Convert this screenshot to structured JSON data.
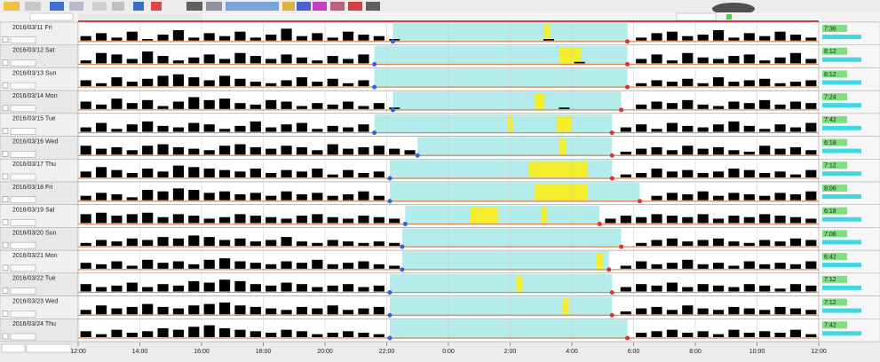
{
  "chart_data": {
    "type": "actogram",
    "xlim": [
      0,
      24
    ],
    "xticks": [
      {
        "value": 0,
        "label": "12:00"
      },
      {
        "value": 2,
        "label": "14:00"
      },
      {
        "value": 4,
        "label": "16:00"
      },
      {
        "value": 6,
        "label": "18:00"
      },
      {
        "value": 8,
        "label": "20:00"
      },
      {
        "value": 10,
        "label": "22:00"
      },
      {
        "value": 12,
        "label": "0:00"
      },
      {
        "value": 14,
        "label": "2:00"
      },
      {
        "value": 16,
        "label": "4:00"
      },
      {
        "value": 18,
        "label": "6:00"
      },
      {
        "value": 20,
        "label": "8:00"
      },
      {
        "value": 22,
        "label": "10:00"
      },
      {
        "value": 24,
        "label": "12:00"
      }
    ],
    "activity_max": 10,
    "colors": {
      "activity": "#000000",
      "sleep": "#b4ecec",
      "wake": "#f4ee2c",
      "onset": "#2a64e0",
      "offset": "#e03030"
    },
    "rows": [
      {
        "date": "2016/03/11 Fri",
        "sleep": [
          10.2,
          17.8
        ],
        "wake": [
          [
            15.1,
            15.3
          ]
        ],
        "summary": "7:36",
        "activity": [
          3,
          5,
          2,
          6,
          1,
          4,
          7,
          2,
          5,
          3,
          6,
          2,
          4,
          8,
          3,
          5,
          2,
          6,
          4,
          3,
          1,
          0,
          0,
          0,
          0,
          0,
          0,
          0,
          0,
          0,
          1,
          0,
          0,
          0,
          0,
          0,
          2,
          5,
          6,
          3,
          4,
          7,
          2,
          5,
          3,
          6,
          4,
          2
        ]
      },
      {
        "date": "2016/03/12 Sat",
        "sleep": [
          9.6,
          17.8
        ],
        "wake": [
          [
            15.6,
            16.3
          ]
        ],
        "summary": "8:12",
        "activity": [
          2,
          7,
          6,
          3,
          8,
          5,
          2,
          4,
          6,
          3,
          7,
          5,
          3,
          6,
          4,
          2,
          5,
          3,
          6,
          0,
          0,
          0,
          0,
          0,
          0,
          0,
          0,
          0,
          0,
          0,
          0,
          0,
          1,
          0,
          0,
          0,
          3,
          6,
          2,
          7,
          4,
          3,
          5,
          6,
          2,
          4,
          7,
          3
        ]
      },
      {
        "date": "2016/03/13 Sun",
        "sleep": [
          9.6,
          17.8
        ],
        "wake": [],
        "summary": "8:12",
        "activity": [
          4,
          2,
          6,
          3,
          5,
          7,
          8,
          6,
          4,
          7,
          5,
          3,
          2,
          4,
          6,
          3,
          5,
          2,
          4,
          0,
          0,
          0,
          0,
          0,
          0,
          0,
          0,
          0,
          0,
          0,
          0,
          0,
          0,
          0,
          0,
          0,
          2,
          4,
          3,
          5,
          2,
          6,
          3,
          4,
          5,
          2,
          3,
          4
        ]
      },
      {
        "date": "2016/03/14 Mon",
        "sleep": [
          10.2,
          17.6
        ],
        "wake": [
          [
            14.8,
            15.1
          ]
        ],
        "summary": "7:24",
        "activity": [
          5,
          3,
          7,
          4,
          6,
          2,
          5,
          8,
          6,
          7,
          4,
          3,
          6,
          5,
          2,
          4,
          3,
          5,
          2,
          4,
          1,
          0,
          0,
          0,
          0,
          0,
          0,
          0,
          0,
          0,
          0,
          1,
          0,
          0,
          0,
          0,
          3,
          5,
          4,
          6,
          3,
          2,
          5,
          4,
          6,
          3,
          5,
          4
        ]
      },
      {
        "date": "2016/03/15 Tue",
        "sleep": [
          9.6,
          17.3
        ],
        "wake": [
          [
            13.9,
            14.1
          ],
          [
            15.5,
            16.0
          ]
        ],
        "summary": "7:42",
        "activity": [
          3,
          6,
          2,
          5,
          7,
          4,
          3,
          6,
          5,
          2,
          4,
          7,
          3,
          5,
          6,
          2,
          4,
          3,
          5,
          0,
          0,
          0,
          0,
          0,
          0,
          0,
          0,
          0,
          0,
          0,
          0,
          0,
          0,
          0,
          0,
          3,
          5,
          2,
          6,
          4,
          3,
          5,
          7,
          4,
          2,
          5,
          3,
          6
        ]
      },
      {
        "date": "2016/03/16 Wed",
        "sleep": [
          11.0,
          17.3
        ],
        "wake": [
          [
            15.6,
            15.8
          ]
        ],
        "summary": "6:18",
        "activity": [
          6,
          4,
          5,
          3,
          6,
          7,
          5,
          4,
          3,
          6,
          7,
          5,
          4,
          6,
          5,
          3,
          7,
          4,
          5,
          6,
          4,
          3,
          0,
          0,
          0,
          0,
          0,
          0,
          0,
          0,
          0,
          0,
          0,
          0,
          0,
          2,
          4,
          5,
          3,
          6,
          4,
          5,
          3,
          2,
          6,
          4,
          5,
          3
        ]
      },
      {
        "date": "2016/03/17 Thu",
        "sleep": [
          10.1,
          17.3
        ],
        "wake": [
          [
            14.6,
            16.5
          ]
        ],
        "summary": "7:12",
        "activity": [
          4,
          7,
          5,
          3,
          6,
          4,
          8,
          7,
          6,
          5,
          4,
          6,
          3,
          5,
          4,
          6,
          2,
          5,
          3,
          4,
          0,
          0,
          0,
          0,
          0,
          0,
          0,
          0,
          0,
          0,
          0,
          0,
          0,
          0,
          0,
          2,
          3,
          6,
          4,
          5,
          3,
          4,
          6,
          5,
          3,
          4,
          2,
          5
        ]
      },
      {
        "date": "2016/03/18 Fri",
        "sleep": [
          10.1,
          18.2
        ],
        "wake": [
          [
            14.8,
            16.5
          ]
        ],
        "summary": "8:06",
        "activity": [
          3,
          5,
          4,
          2,
          7,
          6,
          8,
          7,
          5,
          6,
          4,
          5,
          3,
          6,
          4,
          5,
          3,
          4,
          6,
          3,
          0,
          0,
          0,
          0,
          0,
          0,
          0,
          0,
          0,
          0,
          0,
          0,
          0,
          0,
          0,
          0,
          0,
          3,
          5,
          4,
          6,
          3,
          5,
          4,
          3,
          5,
          4,
          6
        ]
      },
      {
        "date": "2016/03/19 Sat",
        "sleep": [
          10.6,
          16.9
        ],
        "wake": [
          [
            12.7,
            13.6
          ],
          [
            15.0,
            15.2
          ]
        ],
        "summary": "6:18",
        "activity": [
          6,
          7,
          5,
          6,
          7,
          4,
          6,
          5,
          3,
          4,
          6,
          5,
          4,
          3,
          5,
          6,
          4,
          3,
          5,
          4,
          3,
          0,
          0,
          0,
          0,
          0,
          0,
          0,
          0,
          0,
          0,
          0,
          0,
          0,
          3,
          5,
          4,
          6,
          5,
          4,
          6,
          3,
          5,
          4,
          6,
          5,
          4,
          3
        ]
      },
      {
        "date": "2016/03/20 Sun",
        "sleep": [
          10.5,
          17.6
        ],
        "wake": [],
        "summary": "7:06",
        "activity": [
          2,
          4,
          3,
          5,
          4,
          6,
          5,
          7,
          6,
          4,
          5,
          3,
          4,
          6,
          3,
          2,
          4,
          3,
          2,
          3,
          2,
          0,
          0,
          0,
          0,
          0,
          0,
          0,
          0,
          0,
          0,
          0,
          0,
          0,
          0,
          0,
          2,
          4,
          5,
          3,
          4,
          5,
          3,
          2,
          4,
          3,
          5,
          4
        ]
      },
      {
        "date": "2016/03/21 Mon",
        "sleep": [
          10.5,
          17.2
        ],
        "wake": [
          [
            16.8,
            17.0
          ]
        ],
        "summary": "6:42",
        "activity": [
          4,
          3,
          5,
          2,
          6,
          4,
          5,
          3,
          6,
          7,
          5,
          4,
          3,
          5,
          4,
          6,
          3,
          4,
          5,
          3,
          2,
          0,
          0,
          0,
          0,
          0,
          0,
          0,
          0,
          0,
          0,
          0,
          0,
          0,
          0,
          2,
          5,
          3,
          4,
          6,
          3,
          4,
          2,
          5,
          3,
          4,
          3,
          5
        ]
      },
      {
        "date": "2016/03/22 Tue",
        "sleep": [
          10.1,
          17.3
        ],
        "wake": [
          [
            14.2,
            14.4
          ]
        ],
        "summary": "7:12",
        "activity": [
          5,
          3,
          4,
          6,
          3,
          5,
          4,
          7,
          6,
          8,
          7,
          5,
          4,
          6,
          5,
          3,
          4,
          5,
          3,
          4,
          0,
          0,
          0,
          0,
          0,
          0,
          0,
          0,
          0,
          0,
          0,
          0,
          0,
          0,
          0,
          3,
          5,
          4,
          6,
          3,
          5,
          4,
          3,
          5,
          4,
          2,
          5,
          4
        ]
      },
      {
        "date": "2016/03/23 Wed",
        "sleep": [
          10.1,
          17.3
        ],
        "wake": [
          [
            15.7,
            15.9
          ]
        ],
        "summary": "7:12",
        "activity": [
          3,
          6,
          4,
          5,
          7,
          5,
          4,
          6,
          7,
          8,
          6,
          5,
          4,
          3,
          5,
          4,
          6,
          3,
          4,
          5,
          0,
          0,
          0,
          0,
          0,
          0,
          0,
          0,
          0,
          0,
          0,
          0,
          0,
          0,
          0,
          2,
          4,
          5,
          3,
          6,
          4,
          3,
          5,
          4,
          3,
          5,
          4,
          3
        ]
      },
      {
        "date": "2016/03/24 Thu",
        "sleep": [
          10.1,
          17.8
        ],
        "wake": [],
        "summary": "7:42",
        "activity": [
          4,
          2,
          5,
          3,
          4,
          6,
          5,
          7,
          8,
          6,
          5,
          4,
          3,
          5,
          4,
          2,
          3,
          4,
          3,
          2,
          0,
          0,
          0,
          0,
          0,
          0,
          0,
          0,
          0,
          0,
          0,
          0,
          0,
          0,
          0,
          0,
          3,
          4,
          5,
          3,
          4,
          2,
          5,
          3,
          4,
          3,
          5,
          2
        ]
      }
    ]
  }
}
